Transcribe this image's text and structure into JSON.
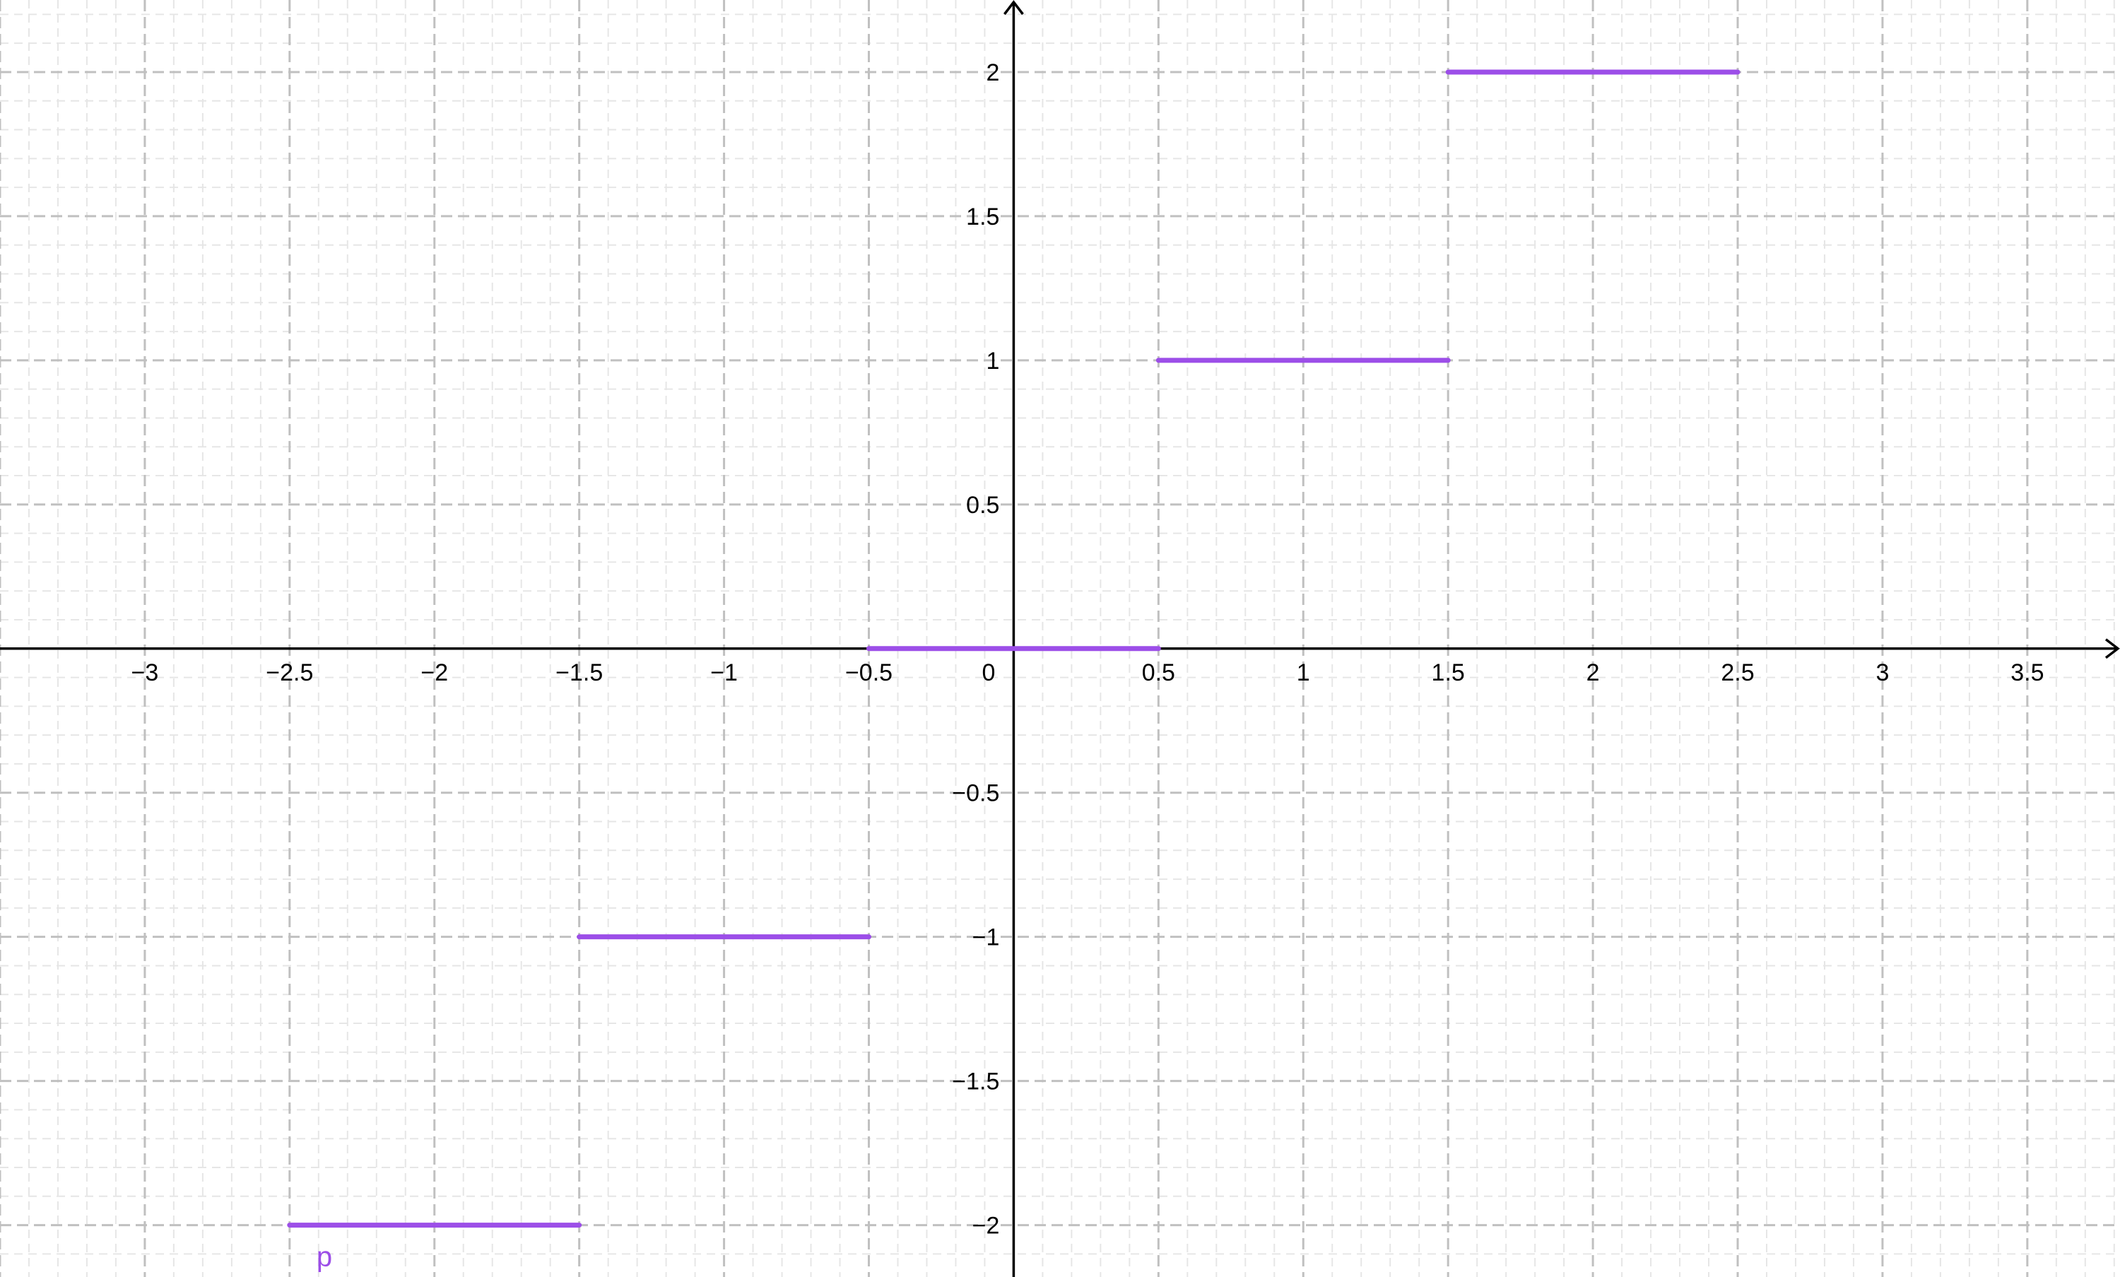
{
  "chart_data": {
    "type": "line",
    "title": "",
    "xlabel": "",
    "ylabel": "",
    "xlim": [
      -3.5,
      3.82
    ],
    "ylim": [
      -2.18,
      2.25
    ],
    "grid": true,
    "x_ticks": [
      -3,
      -2.5,
      -2,
      -1.5,
      -1,
      -0.5,
      0.5,
      1,
      1.5,
      2,
      2.5,
      3,
      3.5
    ],
    "y_ticks": [
      -2,
      -1.5,
      -1,
      -0.5,
      0.5,
      1,
      1.5,
      2
    ],
    "origin_label": "0",
    "series": [
      {
        "name": "p",
        "color": "#9c4ee8",
        "segments": [
          {
            "x": [
              -2.5,
              -1.5
            ],
            "y": -2
          },
          {
            "x": [
              -1.5,
              -0.5
            ],
            "y": -1
          },
          {
            "x": [
              -0.5,
              0.5
            ],
            "y": 0
          },
          {
            "x": [
              0.5,
              1.5
            ],
            "y": 1
          },
          {
            "x": [
              1.5,
              2.5
            ],
            "y": 2
          }
        ]
      }
    ]
  }
}
